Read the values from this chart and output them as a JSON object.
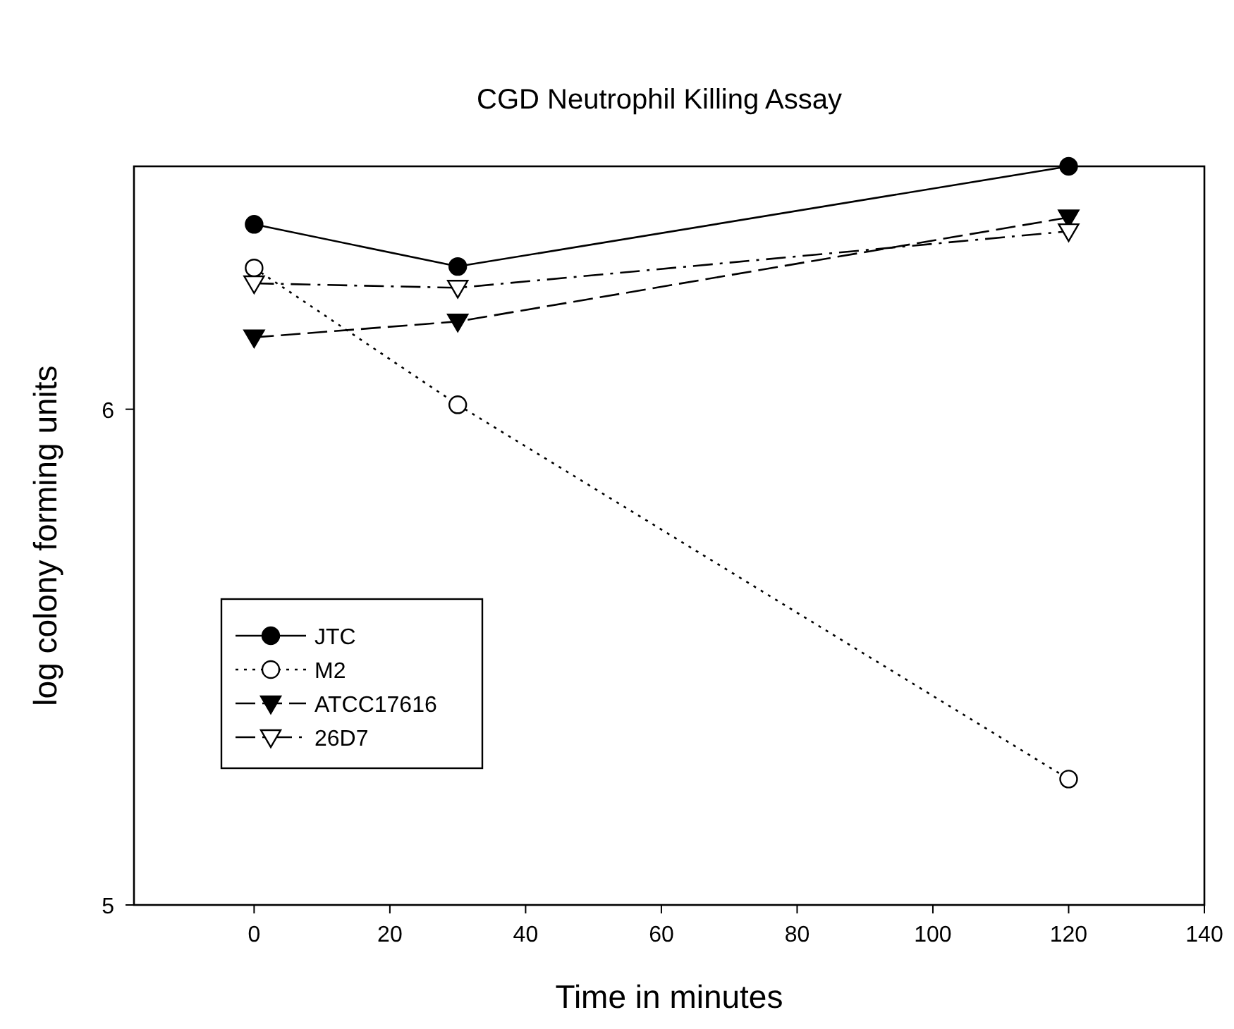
{
  "chart_data": {
    "type": "line",
    "title": "CGD Neutrophil Killing Assay",
    "xlabel": "Time in minutes",
    "ylabel": "log colony forming units",
    "x": [
      0,
      30,
      120
    ],
    "xlim": [
      -17.7,
      140
    ],
    "xticks": [
      0,
      20,
      40,
      60,
      80,
      100,
      120,
      140
    ],
    "ylim": [
      5,
      6.49
    ],
    "yticks": [
      5,
      6
    ],
    "grid": false,
    "legend": "bottom left",
    "series": [
      {
        "name": "JTC",
        "color": "#000000",
        "values": [
          6.373,
          6.288,
          6.49
        ],
        "marker": "circle",
        "line_style": "solid"
      },
      {
        "name": "M2",
        "color": "#000000",
        "values": [
          6.285,
          6.009,
          5.254
        ],
        "marker": "circle",
        "line_style": "dotted"
      },
      {
        "name": "ATCC17616",
        "color": "#000000",
        "values": [
          6.145,
          6.177,
          6.387
        ],
        "marker": "triangle",
        "line_style": "dashed"
      },
      {
        "name": "26D7",
        "color": "#000000",
        "values": [
          6.254,
          6.245,
          6.359
        ],
        "marker": "triangle",
        "line_style": "dashdot"
      }
    ]
  }
}
